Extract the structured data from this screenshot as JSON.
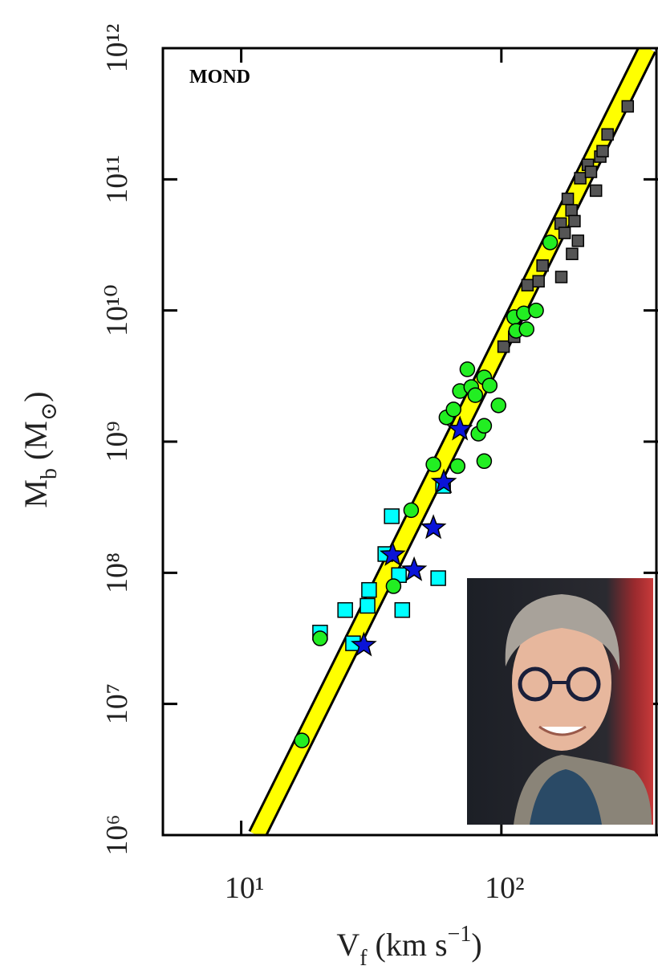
{
  "chart_data": {
    "type": "scatter",
    "annotation": "MOND",
    "xlabel": [
      "V",
      "f",
      " (km s",
      "−1",
      ")"
    ],
    "ylabel": [
      "M",
      "b",
      " (M",
      "⊙",
      ")"
    ],
    "xscale": "log",
    "yscale": "log",
    "xlim": [
      5,
      400
    ],
    "ylim": [
      1000000,
      1000000000000
    ],
    "xticks": [
      {
        "value": 10,
        "label": "10¹"
      },
      {
        "value": 100,
        "label": "10²"
      }
    ],
    "yticks": [
      {
        "value": 1000000,
        "label": "10⁶"
      },
      {
        "value": 10000000,
        "label": "10⁷"
      },
      {
        "value": 100000000,
        "label": "10⁸"
      },
      {
        "value": 1000000000,
        "label": "10⁹"
      },
      {
        "value": 10000000000,
        "label": "10¹⁰"
      },
      {
        "value": 100000000000,
        "label": "10¹¹"
      },
      {
        "value": 1000000000000,
        "label": "10¹²"
      }
    ],
    "fit": {
      "color": "#ffff00",
      "x": [
        11.5,
        365
      ],
      "values": [
        1000000,
        1000000000000
      ]
    },
    "series": [
      {
        "marker": "square",
        "color": "#555555",
        "x": [
          102,
          112,
          126,
          139,
          144,
          170,
          169,
          175,
          180,
          186,
          191,
          197,
          201,
          215,
          221,
          231,
          240,
          245,
          256,
          306,
          187
        ],
        "values": [
          5300000000,
          6300000000,
          15600000000,
          16700000000,
          22000000000,
          18000000000,
          46000000000,
          39000000000,
          71000000000,
          58000000000,
          48000000000,
          34000000000,
          102000000000,
          129000000000,
          114000000000,
          82000000000,
          149000000000,
          164000000000,
          220000000000,
          360000000000,
          27000000000
        ]
      },
      {
        "marker": "square",
        "color": "#00ffff",
        "x": [
          20.1,
          25.1,
          30.6,
          31.0,
          37.9,
          35.8,
          40.4,
          41.6,
          57.2,
          26.9,
          59.7
        ],
        "values": [
          35000000,
          52000000,
          56000000,
          74000000,
          270000000,
          139000000,
          96000000,
          52000000,
          91000000,
          29000000,
          460000000
        ]
      },
      {
        "marker": "circle",
        "color": "#22ee22",
        "x": [
          17.1,
          20.1,
          38.5,
          45,
          54.8,
          67.9,
          61.5,
          65.5,
          69.3,
          74,
          76.6,
          79.4,
          81.6,
          85.9,
          85.9,
          90.2,
          97.5,
          85.9,
          112,
          114,
          122,
          125,
          136,
          154
        ],
        "values": [
          5270000,
          31600000,
          79000000,
          300000000,
          670000000,
          650000000,
          1530000000,
          1760000000,
          2430000000,
          3560000000,
          2610000000,
          2260000000,
          1150000000,
          1320000000,
          3090000000,
          2680000000,
          1890000000,
          710000000,
          8900000000,
          7000000000,
          9500000000,
          7200000000,
          10000000000,
          33000000000
        ]
      },
      {
        "marker": "star",
        "color": "#0a14d8",
        "x": [
          29.6,
          38.2,
          46.2,
          54.8,
          60.1,
          69.3
        ],
        "values": [
          28000000,
          137000000,
          105000000,
          220000000,
          490000000,
          1240000000
        ]
      }
    ]
  }
}
